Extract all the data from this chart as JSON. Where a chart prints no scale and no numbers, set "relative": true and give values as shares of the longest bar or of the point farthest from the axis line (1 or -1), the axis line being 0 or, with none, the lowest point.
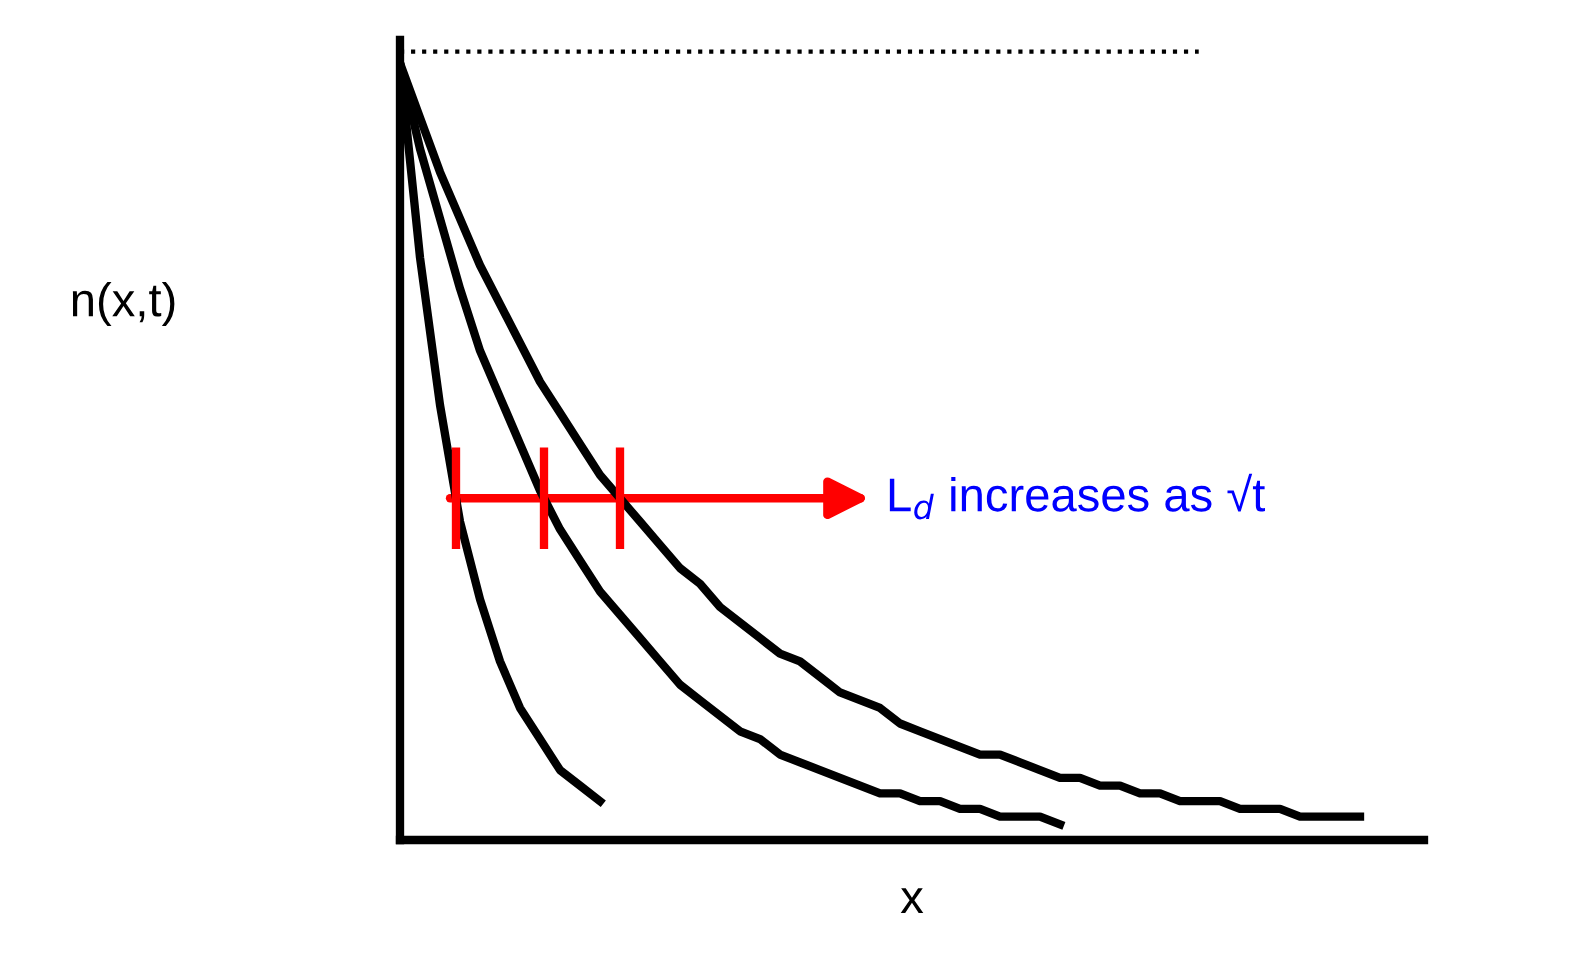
{
  "chart_data": {
    "type": "line",
    "relative": true,
    "xlabel": "x",
    "ylabel": "n(x,t)",
    "categories": [
      null,
      null,
      null,
      null,
      null,
      null,
      null,
      null,
      null,
      null,
      null,
      null,
      null,
      null,
      null,
      null,
      null,
      null,
      null,
      null,
      null,
      null,
      null,
      null,
      null,
      null,
      null,
      null,
      null,
      null,
      null,
      null,
      null,
      null,
      null,
      null,
      null,
      null,
      null,
      null,
      null,
      null,
      null,
      null,
      null,
      null,
      null,
      null,
      null,
      null,
      null,
      null
    ],
    "series": [
      {
        "color": "#000000",
        "values": [
          1,
          0.75,
          0.56,
          0.41,
          0.31,
          0.23,
          0.17,
          0.13,
          0.09,
          0.07,
          0.05,
          null,
          null,
          null,
          null,
          null,
          null,
          null,
          null,
          null,
          null,
          null,
          null,
          null,
          null,
          null,
          null,
          null,
          null,
          null,
          null,
          null,
          null,
          null,
          null,
          null,
          null,
          null,
          null,
          null,
          null,
          null,
          null,
          null,
          null,
          null,
          null,
          null,
          null,
          null,
          null,
          null
        ]
      },
      {
        "color": "#000000",
        "values": [
          1,
          0.89,
          0.8,
          0.71,
          0.63,
          0.57,
          0.51,
          0.45,
          0.4,
          0.36,
          0.32,
          0.29,
          0.26,
          0.23,
          0.2,
          0.18,
          0.16,
          0.14,
          0.13,
          0.11,
          0.1,
          0.09,
          0.08,
          0.07,
          0.06,
          0.06,
          0.05,
          0.05,
          0.04,
          0.04,
          0.03,
          0.03,
          0.03,
          0.02,
          null,
          null,
          null,
          null,
          null,
          null,
          null,
          null,
          null,
          null,
          null,
          null,
          null,
          null,
          null,
          null,
          null,
          null
        ]
      },
      {
        "color": "#000000",
        "values": [
          1,
          0.93,
          0.86,
          0.8,
          0.74,
          0.69,
          0.64,
          0.59,
          0.55,
          0.51,
          0.47,
          0.44,
          0.41,
          0.38,
          0.35,
          0.33,
          0.3,
          0.28,
          0.26,
          0.24,
          0.23,
          0.21,
          0.19,
          0.18,
          0.17,
          0.15,
          0.14,
          0.13,
          0.12,
          0.11,
          0.11,
          0.1,
          0.09,
          0.08,
          0.08,
          0.07,
          0.07,
          0.06,
          0.06,
          0.05,
          0.05,
          0.05,
          0.04,
          0.04,
          0.04,
          0.03,
          0.03,
          0.03,
          0.03,
          null,
          null,
          null
        ]
      }
    ],
    "ref_lines": [
      {
        "axis": "y",
        "value": 1.015,
        "color": "#000000",
        "line_style": "dotted"
      }
    ],
    "annotations": [
      "L$_{d}$ increases as √t"
    ],
    "line_style": "solid",
    "marker": "none",
    "legend": false
  }
}
